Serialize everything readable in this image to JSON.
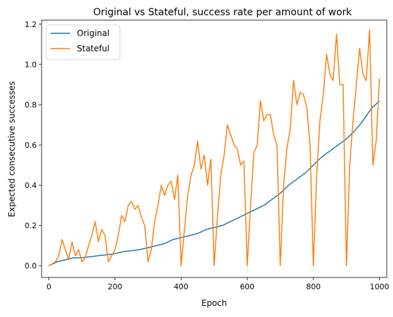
{
  "chart_data": {
    "type": "line",
    "title": "Original vs Stateful, success rate per amount of work",
    "xlabel": "Epoch",
    "ylabel": "Expected consecutive successes",
    "xlim": [
      -22,
      1022
    ],
    "ylim": [
      -0.058,
      1.22
    ],
    "xticks": [
      0,
      200,
      400,
      600,
      800,
      1000
    ],
    "xtick_labels": [
      "0",
      "200",
      "400",
      "600",
      "800",
      "1000"
    ],
    "yticks": [
      0.0,
      0.2,
      0.4,
      0.6,
      0.8,
      1.0,
      1.2
    ],
    "ytick_labels": [
      "0.0",
      "0.2",
      "0.4",
      "0.6",
      "0.8",
      "1.0",
      "1.2"
    ],
    "grid": false,
    "legend_position": "top-left",
    "series": [
      {
        "name": "Original",
        "color": "#1f77b4",
        "x": [
          0,
          25,
          50,
          75,
          100,
          125,
          150,
          175,
          200,
          225,
          250,
          275,
          300,
          325,
          350,
          375,
          400,
          425,
          450,
          475,
          500,
          525,
          550,
          575,
          600,
          625,
          650,
          675,
          700,
          725,
          750,
          775,
          800,
          825,
          850,
          875,
          900,
          925,
          950,
          975,
          1000
        ],
        "values": [
          0.0,
          0.02,
          0.03,
          0.04,
          0.04,
          0.045,
          0.05,
          0.055,
          0.06,
          0.07,
          0.075,
          0.08,
          0.09,
          0.1,
          0.11,
          0.13,
          0.14,
          0.15,
          0.16,
          0.18,
          0.19,
          0.2,
          0.22,
          0.24,
          0.26,
          0.28,
          0.3,
          0.33,
          0.36,
          0.4,
          0.43,
          0.46,
          0.5,
          0.54,
          0.57,
          0.6,
          0.63,
          0.67,
          0.72,
          0.78,
          0.82
        ]
      },
      {
        "name": "Stateful",
        "color": "#ff7f0e",
        "x": [
          0,
          10,
          20,
          30,
          40,
          50,
          60,
          70,
          80,
          90,
          100,
          110,
          120,
          130,
          140,
          150,
          160,
          170,
          180,
          190,
          200,
          210,
          220,
          230,
          240,
          250,
          260,
          270,
          280,
          290,
          300,
          310,
          320,
          330,
          340,
          350,
          360,
          370,
          380,
          390,
          400,
          410,
          420,
          430,
          440,
          450,
          460,
          470,
          480,
          490,
          500,
          510,
          520,
          530,
          540,
          550,
          560,
          570,
          580,
          590,
          600,
          610,
          620,
          630,
          640,
          650,
          660,
          670,
          680,
          690,
          700,
          710,
          720,
          730,
          740,
          750,
          760,
          770,
          780,
          790,
          800,
          810,
          820,
          830,
          840,
          850,
          860,
          870,
          880,
          890,
          900,
          910,
          920,
          930,
          940,
          950,
          960,
          970,
          980,
          990,
          1000
        ],
        "values": [
          0.0,
          0.01,
          0.02,
          0.05,
          0.13,
          0.08,
          0.03,
          0.12,
          0.05,
          0.08,
          0.02,
          0.04,
          0.1,
          0.15,
          0.22,
          0.12,
          0.18,
          0.15,
          0.02,
          0.05,
          0.08,
          0.15,
          0.25,
          0.22,
          0.3,
          0.32,
          0.28,
          0.3,
          0.24,
          0.2,
          0.02,
          0.08,
          0.22,
          0.3,
          0.4,
          0.35,
          0.4,
          0.42,
          0.33,
          0.45,
          0.0,
          0.18,
          0.35,
          0.45,
          0.5,
          0.62,
          0.48,
          0.55,
          0.4,
          0.53,
          0.0,
          0.25,
          0.45,
          0.55,
          0.7,
          0.65,
          0.6,
          0.58,
          0.5,
          0.52,
          0.0,
          0.3,
          0.56,
          0.6,
          0.82,
          0.72,
          0.75,
          0.75,
          0.65,
          0.6,
          0.0,
          0.4,
          0.58,
          0.68,
          0.92,
          0.8,
          0.86,
          0.85,
          0.79,
          0.6,
          0.0,
          0.45,
          0.72,
          0.85,
          1.05,
          0.95,
          0.92,
          1.15,
          0.9,
          0.9,
          0.0,
          0.5,
          0.72,
          0.9,
          1.08,
          0.95,
          0.92,
          1.17,
          0.5,
          0.62,
          0.93
        ]
      }
    ]
  }
}
